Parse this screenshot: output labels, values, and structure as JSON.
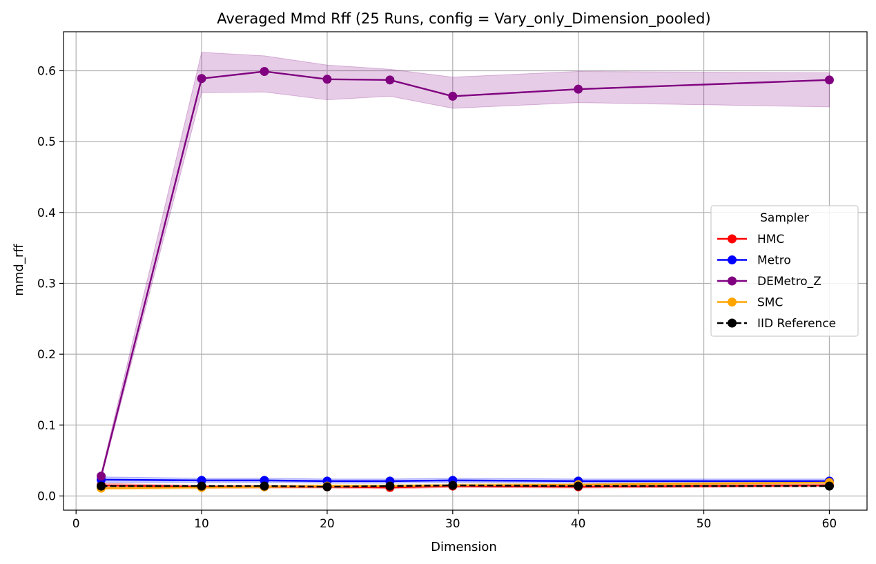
{
  "chart_data": {
    "type": "line",
    "title": "Averaged Mmd Rff (25 Runs, config = Vary_only_Dimension_pooled)",
    "xlabel": "Dimension",
    "ylabel": "mmd_rff",
    "xlim": [
      -1,
      63
    ],
    "ylim": [
      -0.02,
      0.655
    ],
    "xticks": [
      0,
      10,
      20,
      30,
      40,
      50,
      60
    ],
    "yticks": [
      0.0,
      0.1,
      0.2,
      0.3,
      0.4,
      0.5,
      0.6
    ],
    "xtick_labels": [
      "0",
      "10",
      "20",
      "30",
      "40",
      "50",
      "60"
    ],
    "ytick_labels": [
      "0.0",
      "0.1",
      "0.2",
      "0.3",
      "0.4",
      "0.5",
      "0.6"
    ],
    "grid": true,
    "legend": {
      "title": "Sampler",
      "placement": "center-right"
    },
    "x": [
      2,
      10,
      15,
      20,
      25,
      30,
      40,
      60
    ],
    "series": [
      {
        "name": "HMC",
        "color": "#ff0000",
        "style": "solid",
        "values": [
          0.015,
          0.013,
          0.013,
          0.013,
          0.012,
          0.014,
          0.013,
          0.015
        ],
        "band_lower": [
          0.012,
          0.011,
          0.011,
          0.011,
          0.01,
          0.012,
          0.011,
          0.013
        ],
        "band_upper": [
          0.018,
          0.015,
          0.015,
          0.015,
          0.014,
          0.016,
          0.015,
          0.017
        ]
      },
      {
        "name": "Metro",
        "color": "#0000ff",
        "style": "solid",
        "values": [
          0.023,
          0.022,
          0.022,
          0.021,
          0.021,
          0.022,
          0.021,
          0.021
        ],
        "band_lower": [
          0.019,
          0.019,
          0.019,
          0.018,
          0.018,
          0.019,
          0.018,
          0.018
        ],
        "band_upper": [
          0.027,
          0.025,
          0.025,
          0.024,
          0.024,
          0.025,
          0.024,
          0.024
        ]
      },
      {
        "name": "DEMetro_Z",
        "color": "#800080",
        "style": "solid",
        "values": [
          0.028,
          0.589,
          0.599,
          0.588,
          0.587,
          0.564,
          0.574,
          0.587
        ],
        "band_lower": [
          0.024,
          0.569,
          0.57,
          0.559,
          0.564,
          0.547,
          0.555,
          0.549
        ],
        "band_upper": [
          0.032,
          0.626,
          0.621,
          0.608,
          0.602,
          0.591,
          0.599,
          0.597
        ]
      },
      {
        "name": "SMC",
        "color": "#ffa500",
        "style": "solid",
        "values": [
          0.011,
          0.012,
          0.013,
          0.014,
          0.014,
          0.015,
          0.016,
          0.019
        ],
        "band_lower": [
          0.009,
          0.01,
          0.011,
          0.012,
          0.012,
          0.013,
          0.014,
          0.017
        ],
        "band_upper": [
          0.013,
          0.014,
          0.015,
          0.016,
          0.016,
          0.017,
          0.018,
          0.021
        ]
      },
      {
        "name": "IID Reference",
        "color": "#000000",
        "style": "dashed",
        "values": [
          0.014,
          0.014,
          0.014,
          0.013,
          0.014,
          0.015,
          0.014,
          0.014
        ]
      }
    ]
  }
}
